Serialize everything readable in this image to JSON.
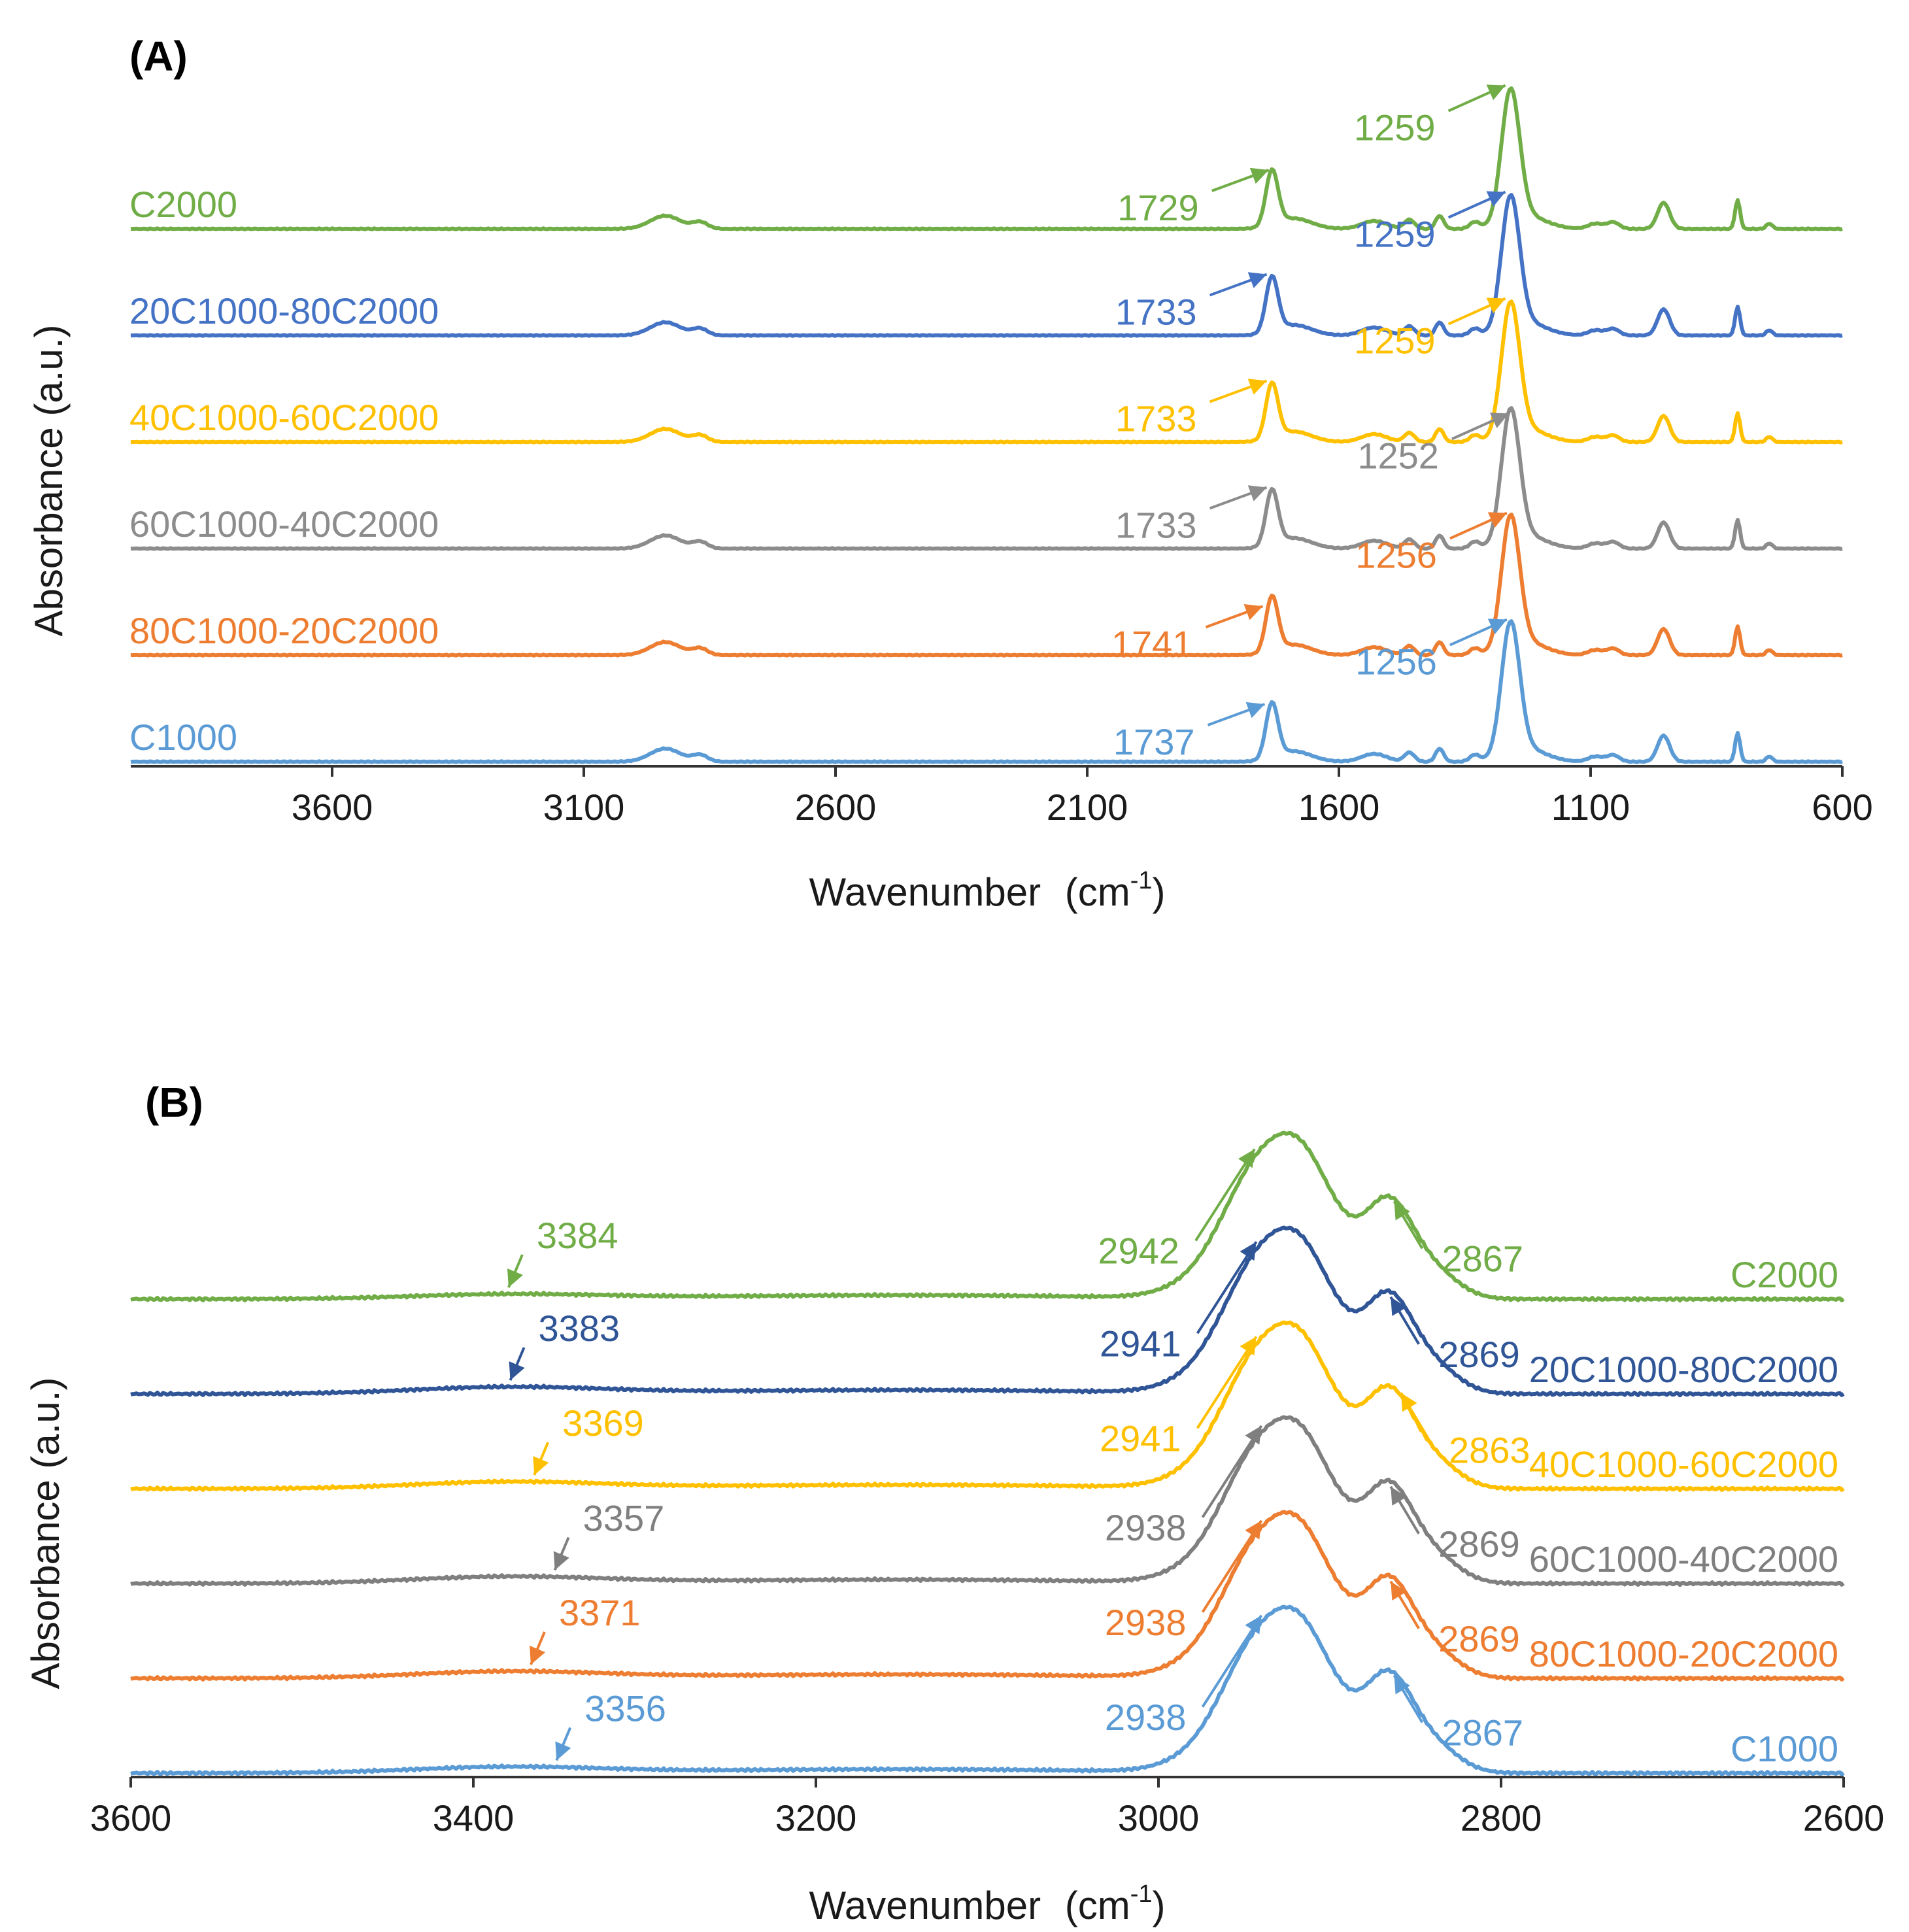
{
  "chart_data": [
    {
      "panel": "(A)",
      "type": "line",
      "xlabel": "Wavenumber",
      "xlabel_unit": "(cm",
      "xlabel_exp": "-1",
      "xlabel_close": ")",
      "ylabel": "Absorbance  (a.u.)",
      "xlim": [
        4000,
        600
      ],
      "x_reversed": true,
      "xticks": [
        "3600",
        "3100",
        "2600",
        "2100",
        "1600",
        "1100",
        "600"
      ],
      "grid": false,
      "series": [
        {
          "name": "C2000",
          "color": "#70ad47",
          "offset": 5,
          "peaks": [
            {
              "label": "1729",
              "x": 1729
            },
            {
              "label": "1259",
              "x": 1259
            }
          ]
        },
        {
          "name": "20C1000-80C2000",
          "color": "#4472c4",
          "offset": 4,
          "peaks": [
            {
              "label": "1733",
              "x": 1733
            },
            {
              "label": "1259",
              "x": 1259
            }
          ]
        },
        {
          "name": "40C1000-60C2000",
          "color": "#ffc000",
          "offset": 3,
          "peaks": [
            {
              "label": "1733",
              "x": 1733
            },
            {
              "label": "1259",
              "x": 1259
            }
          ]
        },
        {
          "name": "60C1000-40C2000",
          "color": "#8c8c8c",
          "offset": 2,
          "peaks": [
            {
              "label": "1733",
              "x": 1733
            },
            {
              "label": "1252",
              "x": 1252
            }
          ]
        },
        {
          "name": "80C1000-20C2000",
          "color": "#ed7d31",
          "offset": 1,
          "peaks": [
            {
              "label": "1741",
              "x": 1741
            },
            {
              "label": "1256",
              "x": 1256
            }
          ]
        },
        {
          "name": "C1000",
          "color": "#5b9bd5",
          "offset": 0,
          "peaks": [
            {
              "label": "1737",
              "x": 1737
            },
            {
              "label": "1256",
              "x": 1256
            }
          ]
        }
      ]
    },
    {
      "panel": "(B)",
      "type": "line",
      "xlabel": "Wavenumber",
      "xlabel_unit": "(cm",
      "xlabel_exp": "-1",
      "xlabel_close": ")",
      "ylabel": "Absorbance  (a.u.)",
      "xlim": [
        3600,
        2600
      ],
      "x_reversed": true,
      "xticks": [
        "3600",
        "3400",
        "3200",
        "3000",
        "2800",
        "2600"
      ],
      "grid": false,
      "series": [
        {
          "name": "C2000",
          "color": "#70ad47",
          "offset": 5,
          "peaks": [
            {
              "label": "3384",
              "x": 3384
            },
            {
              "label": "2942",
              "x": 2942
            },
            {
              "label": "2867",
              "x": 2867
            }
          ]
        },
        {
          "name": "20C1000-80C2000",
          "color": "#2f5597",
          "offset": 4,
          "peaks": [
            {
              "label": "3383",
              "x": 3383
            },
            {
              "label": "2941",
              "x": 2941
            },
            {
              "label": "2869",
              "x": 2869
            }
          ]
        },
        {
          "name": "40C1000-60C2000",
          "color": "#ffc000",
          "offset": 3,
          "peaks": [
            {
              "label": "3369",
              "x": 3369
            },
            {
              "label": "2941",
              "x": 2941
            },
            {
              "label": "2863",
              "x": 2863
            }
          ]
        },
        {
          "name": "60C1000-40C2000",
          "color": "#7f7f7f",
          "offset": 2,
          "peaks": [
            {
              "label": "3357",
              "x": 3357
            },
            {
              "label": "2938",
              "x": 2938
            },
            {
              "label": "2869",
              "x": 2869
            }
          ]
        },
        {
          "name": "80C1000-20C2000",
          "color": "#ed7d31",
          "offset": 1,
          "peaks": [
            {
              "label": "3371",
              "x": 3371
            },
            {
              "label": "2938",
              "x": 2938
            },
            {
              "label": "2869",
              "x": 2869
            }
          ]
        },
        {
          "name": "C1000",
          "color": "#5b9bd5",
          "offset": 0,
          "peaks": [
            {
              "label": "3356",
              "x": 3356
            },
            {
              "label": "2938",
              "x": 2938
            },
            {
              "label": "2867",
              "x": 2867
            }
          ]
        }
      ]
    }
  ]
}
